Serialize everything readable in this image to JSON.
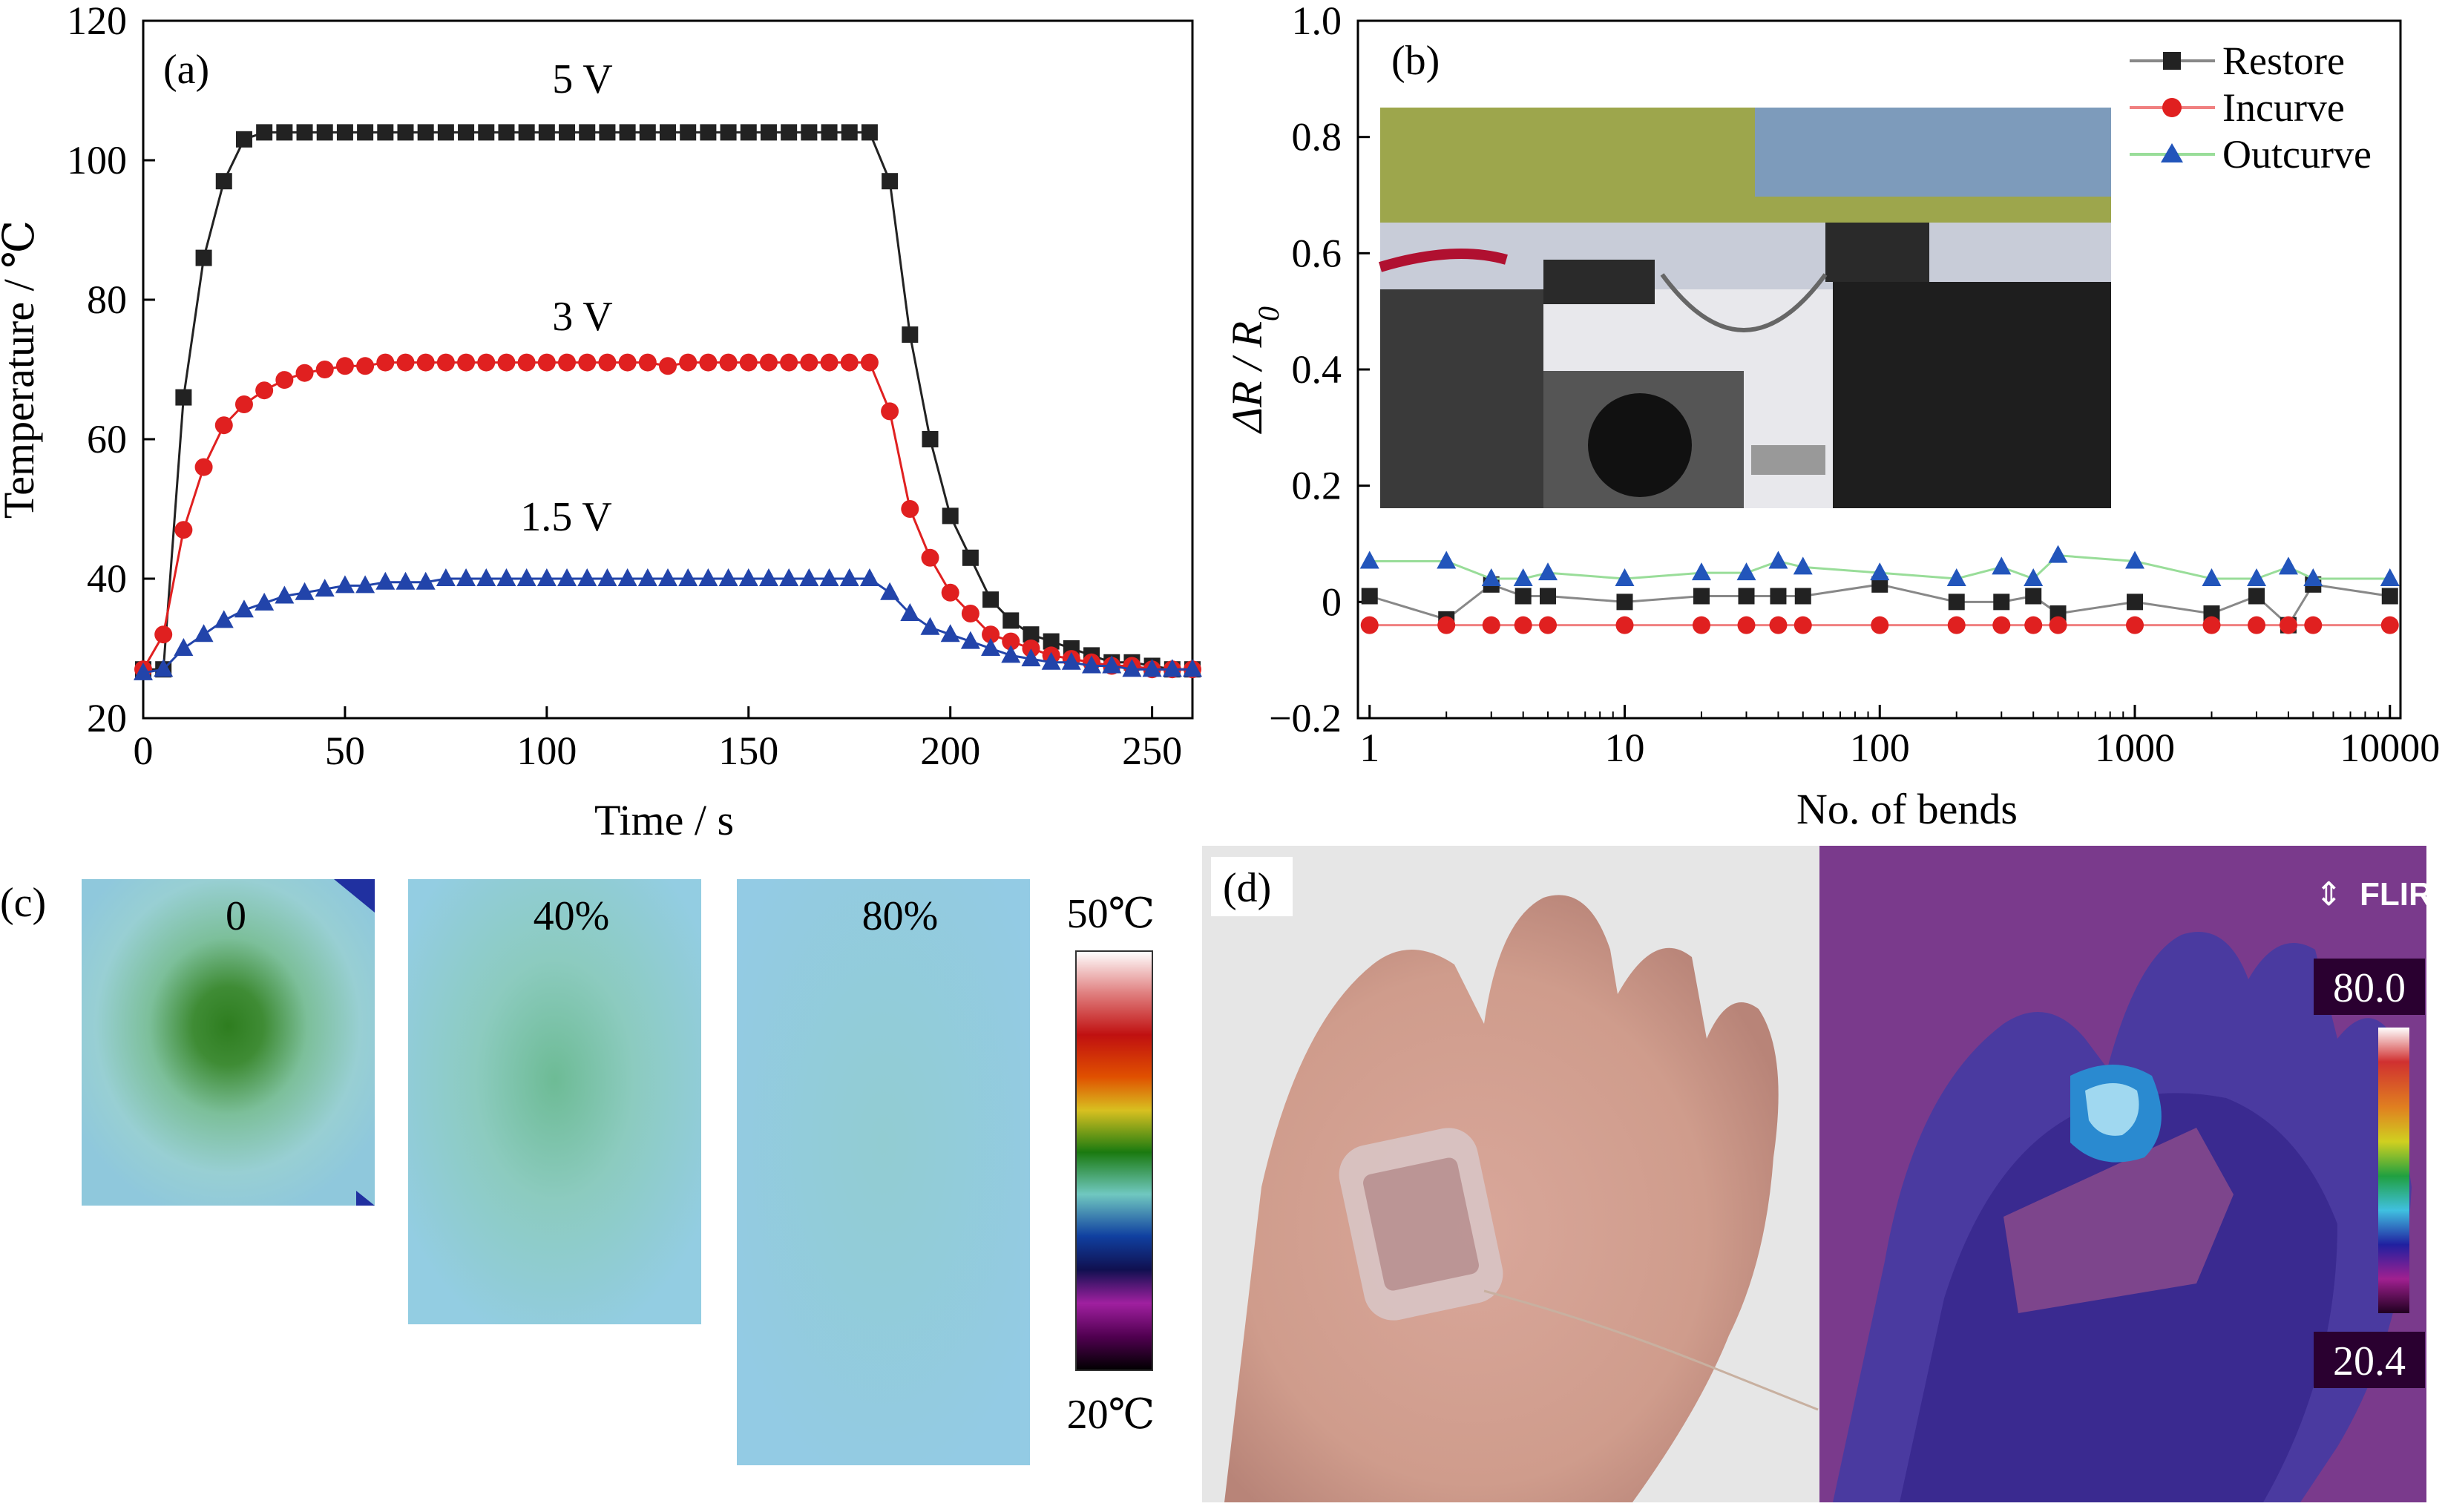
{
  "panel_labels": {
    "a": "(a)",
    "b": "(b)",
    "c": "(c)",
    "d": "(d)"
  },
  "chart_data": [
    {
      "type": "scatter",
      "panel": "(a)",
      "xlabel": "Time / s",
      "ylabel": "Temperature / ℃",
      "xlim": [
        0,
        260
      ],
      "ylim": [
        20,
        120
      ],
      "xticks": [
        0,
        50,
        100,
        150,
        200,
        250
      ],
      "yticks": [
        20,
        40,
        60,
        80,
        100,
        120
      ],
      "grid": false,
      "series": [
        {
          "name": "5 V",
          "color": "#222222",
          "marker": "square",
          "x": [
            0,
            5,
            10,
            15,
            20,
            25,
            30,
            35,
            40,
            45,
            50,
            55,
            60,
            65,
            70,
            75,
            80,
            85,
            90,
            95,
            100,
            105,
            110,
            115,
            120,
            125,
            130,
            135,
            140,
            145,
            150,
            155,
            160,
            165,
            170,
            175,
            180,
            185,
            190,
            195,
            200,
            205,
            210,
            215,
            220,
            225,
            230,
            235,
            240,
            245,
            250,
            255,
            260
          ],
          "y": [
            27,
            27,
            66,
            86,
            97,
            103,
            104,
            104,
            104,
            104,
            104,
            104,
            104,
            104,
            104,
            104,
            104,
            104,
            104,
            104,
            104,
            104,
            104,
            104,
            104,
            104,
            104,
            104,
            104,
            104,
            104,
            104,
            104,
            104,
            104,
            104,
            104,
            97,
            75,
            60,
            49,
            43,
            37,
            34,
            32,
            31,
            30,
            29,
            28,
            28,
            27.5,
            27,
            27
          ]
        },
        {
          "name": "3 V",
          "color": "#e02020",
          "marker": "circle",
          "x": [
            0,
            5,
            10,
            15,
            20,
            25,
            30,
            35,
            40,
            45,
            50,
            55,
            60,
            65,
            70,
            75,
            80,
            85,
            90,
            95,
            100,
            105,
            110,
            115,
            120,
            125,
            130,
            135,
            140,
            145,
            150,
            155,
            160,
            165,
            170,
            175,
            180,
            185,
            190,
            195,
            200,
            205,
            210,
            215,
            220,
            225,
            230,
            235,
            240,
            245,
            250,
            255,
            260
          ],
          "y": [
            27,
            32,
            47,
            56,
            62,
            65,
            67,
            68.5,
            69.5,
            70,
            70.5,
            70.5,
            71,
            71,
            71,
            71,
            71,
            71,
            71,
            71,
            71,
            71,
            71,
            71,
            71,
            71,
            70.5,
            71,
            71,
            71,
            71,
            71,
            71,
            71,
            71,
            71,
            71,
            64,
            50,
            43,
            38,
            35,
            32,
            31,
            30,
            29,
            28.5,
            28,
            27.5,
            27.5,
            27,
            27,
            27
          ]
        },
        {
          "name": "1.5 V",
          "color": "#2244aa",
          "marker": "triangle",
          "x": [
            0,
            5,
            10,
            15,
            20,
            25,
            30,
            35,
            40,
            45,
            50,
            55,
            60,
            65,
            70,
            75,
            80,
            85,
            90,
            95,
            100,
            105,
            110,
            115,
            120,
            125,
            130,
            135,
            140,
            145,
            150,
            155,
            160,
            165,
            170,
            175,
            180,
            185,
            190,
            195,
            200,
            205,
            210,
            215,
            220,
            225,
            230,
            235,
            240,
            245,
            250,
            255,
            260
          ],
          "y": [
            26.5,
            27,
            30,
            32,
            34,
            35.5,
            36.5,
            37.5,
            38,
            38.5,
            39,
            39,
            39.5,
            39.5,
            39.5,
            40,
            40,
            40,
            40,
            40,
            40,
            40,
            40,
            40,
            40,
            40,
            40,
            40,
            40,
            40,
            40,
            40,
            40,
            40,
            40,
            40,
            40,
            38,
            35,
            33,
            32,
            31,
            30,
            29,
            28.5,
            28,
            28,
            27.5,
            27.5,
            27,
            27,
            27,
            27
          ]
        }
      ],
      "annotations": [
        "5 V",
        "3 V",
        "1.5 V"
      ]
    },
    {
      "type": "line",
      "panel": "(b)",
      "xlabel": "No. of bends",
      "ylabel": "ΔR / R0",
      "xscale": "log",
      "xlim": [
        0.9,
        11000
      ],
      "ylim": [
        -0.2,
        1.0
      ],
      "xticks": [
        1,
        10,
        100,
        1000,
        10000
      ],
      "xticklabels": [
        "1",
        "10",
        "100",
        "1000",
        "10000"
      ],
      "yticks": [
        -0.2,
        0,
        0.2,
        0.4,
        0.6,
        0.8,
        1.0
      ],
      "yticklabels": [
        "−0.2",
        "0",
        "0.2",
        "0.4",
        "0.6",
        "0.8",
        "1.0"
      ],
      "legend": "top-right",
      "grid": false,
      "series": [
        {
          "name": "Restore",
          "color": "#222222",
          "marker": "square",
          "line": "#888888",
          "x": [
            1,
            2,
            3,
            4,
            5,
            10,
            20,
            30,
            40,
            50,
            100,
            200,
            300,
            400,
            500,
            1000,
            2000,
            3000,
            4000,
            5000,
            10000
          ],
          "y": [
            0.01,
            -0.03,
            0.03,
            0.01,
            0.01,
            0,
            0.01,
            0.01,
            0.01,
            0.01,
            0.03,
            0,
            0,
            0.01,
            -0.02,
            0,
            -0.02,
            0.01,
            -0.04,
            0.03,
            0.01
          ]
        },
        {
          "name": "Incurve",
          "color": "#e02020",
          "marker": "circle",
          "line": "#f08080",
          "x": [
            1,
            2,
            3,
            4,
            5,
            10,
            20,
            30,
            40,
            50,
            100,
            200,
            300,
            400,
            500,
            1000,
            2000,
            3000,
            4000,
            5000,
            10000
          ],
          "y": [
            -0.04,
            -0.04,
            -0.04,
            -0.04,
            -0.04,
            -0.04,
            -0.04,
            -0.04,
            -0.04,
            -0.04,
            -0.04,
            -0.04,
            -0.04,
            -0.04,
            -0.04,
            -0.04,
            -0.04,
            -0.04,
            -0.04,
            -0.04,
            -0.04
          ]
        },
        {
          "name": "Outcurve",
          "color": "#2255bb",
          "marker": "triangle",
          "line": "#99dd99",
          "x": [
            1,
            2,
            3,
            4,
            5,
            10,
            20,
            30,
            40,
            50,
            100,
            200,
            300,
            400,
            500,
            1000,
            2000,
            3000,
            4000,
            5000,
            10000
          ],
          "y": [
            0.07,
            0.07,
            0.04,
            0.04,
            0.05,
            0.04,
            0.05,
            0.05,
            0.07,
            0.06,
            0.05,
            0.04,
            0.06,
            0.04,
            0.08,
            0.07,
            0.04,
            0.04,
            0.06,
            0.04,
            0.04
          ]
        }
      ]
    }
  ],
  "panel_c": {
    "labels": [
      "0",
      "40%",
      "80%"
    ],
    "colorbar_max": "50℃",
    "colorbar_min": "20℃"
  },
  "panel_d": {
    "brand": "FLIR",
    "scale_max": "80.0",
    "scale_min": "20.4"
  }
}
